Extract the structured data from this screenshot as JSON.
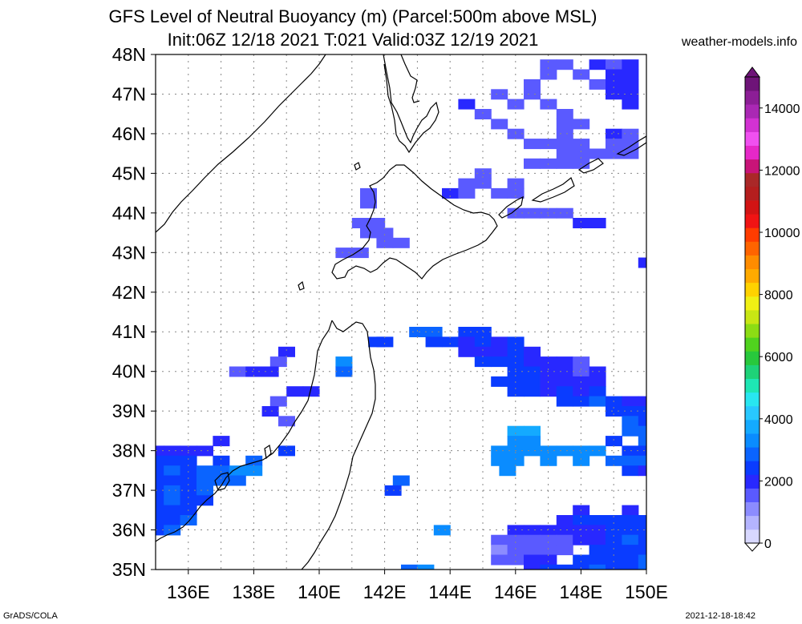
{
  "title_line1": "GFS Level of Neutral Buoyancy (m) (Parcel:500m above MSL)",
  "title_line2": "Init:06Z 12/18 2021 T:021 Valid:03Z 12/19 2021",
  "site": "weather-models.info",
  "footer_left": "GrADS/COLA",
  "footer_right": "2021-12-18-18:42",
  "map": {
    "lat_labels": [
      "48N",
      "47N",
      "46N",
      "45N",
      "44N",
      "43N",
      "42N",
      "41N",
      "40N",
      "39N",
      "38N",
      "37N",
      "36N",
      "35N"
    ],
    "lon_labels": [
      "136E",
      "138E",
      "140E",
      "142E",
      "144E",
      "146E",
      "148E",
      "150E"
    ],
    "lat_range": [
      35,
      48
    ],
    "lon_range": [
      135,
      150
    ],
    "grid": "dotted"
  },
  "colorbar": {
    "labels": [
      "14000",
      "12000",
      "10000",
      "8000",
      "6000",
      "4000",
      "2000",
      "0"
    ],
    "colors": [
      "#d8d8ff",
      "#b4b4ff",
      "#8c8cff",
      "#5a5aff",
      "#2828ff",
      "#0a3cff",
      "#0a64ff",
      "#0a8cff",
      "#14aaff",
      "#28c8ff",
      "#28e6f0",
      "#1ee6b4",
      "#1ed278",
      "#28c83c",
      "#50d21e",
      "#8cdc14",
      "#c8e614",
      "#f0f014",
      "#ffd200",
      "#ffaa00",
      "#ff8c00",
      "#ff6400",
      "#ff3c00",
      "#f01414",
      "#d21414",
      "#b41e1e",
      "#aa2828",
      "#c81478",
      "#e628c8",
      "#f050f0",
      "#d232d2",
      "#aa28b4",
      "#8c1e96",
      "#6e1478"
    ]
  },
  "cells": [
    [
      47.75,
      147.0,
      1500
    ],
    [
      47.75,
      147.5,
      1500
    ],
    [
      47.75,
      148.5,
      1900
    ],
    [
      47.75,
      149.0,
      1500
    ],
    [
      47.75,
      149.5,
      1800
    ],
    [
      47.5,
      147.0,
      1500
    ],
    [
      47.5,
      148.0,
      1700
    ],
    [
      47.5,
      149.0,
      2000
    ],
    [
      47.5,
      149.5,
      2100
    ],
    [
      47.25,
      146.5,
      1700
    ],
    [
      47.25,
      148.5,
      1500
    ],
    [
      47.25,
      149.0,
      2000
    ],
    [
      47.25,
      149.5,
      1900
    ],
    [
      47.0,
      145.5,
      1700
    ],
    [
      47.0,
      146.5,
      1500
    ],
    [
      47.0,
      149.0,
      1800
    ],
    [
      47.0,
      149.5,
      2200
    ],
    [
      46.75,
      144.5,
      1800
    ],
    [
      46.75,
      146.0,
      1500
    ],
    [
      46.75,
      147.0,
      1600
    ],
    [
      46.75,
      149.5,
      1800
    ],
    [
      46.5,
      145.0,
      1700
    ],
    [
      46.5,
      147.5,
      1500
    ],
    [
      46.25,
      145.5,
      1500
    ],
    [
      46.25,
      147.5,
      1600
    ],
    [
      46.25,
      148.0,
      1500
    ],
    [
      46.0,
      146.0,
      1500
    ],
    [
      46.0,
      147.5,
      1700
    ],
    [
      46.0,
      149.0,
      1800
    ],
    [
      46.0,
      149.5,
      1600
    ],
    [
      45.75,
      146.5,
      1500
    ],
    [
      45.75,
      147.0,
      1600
    ],
    [
      45.75,
      147.5,
      1500
    ],
    [
      45.75,
      148.0,
      1500
    ],
    [
      45.75,
      149.0,
      1700
    ],
    [
      45.75,
      149.5,
      1700
    ],
    [
      45.5,
      147.5,
      1600
    ],
    [
      45.5,
      148.0,
      1700
    ],
    [
      45.5,
      148.5,
      1600
    ],
    [
      45.5,
      149.0,
      1500
    ],
    [
      45.5,
      149.5,
      1500
    ],
    [
      45.25,
      146.5,
      1500
    ],
    [
      45.25,
      147.0,
      1500
    ],
    [
      45.25,
      147.5,
      1500
    ],
    [
      45.25,
      148.0,
      1600
    ],
    [
      45.0,
      145.0,
      1600
    ],
    [
      44.75,
      144.5,
      1700
    ],
    [
      44.75,
      145.0,
      1500
    ],
    [
      44.75,
      146.0,
      1500
    ],
    [
      44.5,
      141.5,
      1700
    ],
    [
      44.5,
      144.0,
      1800
    ],
    [
      44.5,
      144.5,
      1600
    ],
    [
      44.5,
      145.5,
      1500
    ],
    [
      44.5,
      146.0,
      1600
    ],
    [
      44.25,
      141.5,
      1700
    ],
    [
      44.0,
      146.0,
      1500
    ],
    [
      44.0,
      146.5,
      1500
    ],
    [
      44.0,
      147.0,
      1500
    ],
    [
      44.0,
      147.5,
      1500
    ],
    [
      43.75,
      141.25,
      1700
    ],
    [
      43.75,
      141.75,
      1600
    ],
    [
      43.75,
      148.0,
      1800
    ],
    [
      43.75,
      148.5,
      1800
    ],
    [
      43.5,
      141.5,
      1700
    ],
    [
      43.5,
      142.0,
      1600
    ],
    [
      43.25,
      142.5,
      1500
    ],
    [
      43.25,
      142.0,
      1600
    ],
    [
      43.0,
      140.75,
      1600
    ],
    [
      43.0,
      141.25,
      1600
    ],
    [
      42.75,
      150.0,
      1800
    ],
    [
      41.0,
      143.0,
      2800
    ],
    [
      41.0,
      143.5,
      3000
    ],
    [
      41.0,
      144.5,
      2400
    ],
    [
      41.0,
      145.0,
      2600
    ],
    [
      40.75,
      141.75,
      2400
    ],
    [
      40.75,
      142.0,
      2300
    ],
    [
      40.75,
      143.5,
      2500
    ],
    [
      40.75,
      144.0,
      2300
    ],
    [
      40.75,
      144.5,
      2200
    ],
    [
      40.75,
      145.0,
      2300
    ],
    [
      40.75,
      145.5,
      2000
    ],
    [
      40.75,
      146.0,
      2400
    ],
    [
      40.5,
      139.0,
      1800
    ],
    [
      40.5,
      144.5,
      2200
    ],
    [
      40.5,
      145.0,
      2000
    ],
    [
      40.5,
      145.5,
      2100
    ],
    [
      40.5,
      146.0,
      2400
    ],
    [
      40.5,
      146.5,
      1900
    ],
    [
      40.25,
      140.75,
      3200
    ],
    [
      40.25,
      138.75,
      1600
    ],
    [
      40.25,
      145.0,
      2300
    ],
    [
      40.25,
      145.5,
      2500
    ],
    [
      40.25,
      146.0,
      2600
    ],
    [
      40.25,
      146.5,
      2200
    ],
    [
      40.25,
      147.0,
      2000
    ],
    [
      40.25,
      147.5,
      2100
    ],
    [
      40.25,
      148.0,
      1500
    ],
    [
      40.0,
      137.5,
      1700
    ],
    [
      40.0,
      138.0,
      1800
    ],
    [
      40.0,
      138.5,
      1900
    ],
    [
      40.0,
      140.75,
      2800
    ],
    [
      40.0,
      146.0,
      2400
    ],
    [
      40.0,
      146.5,
      2300
    ],
    [
      40.0,
      147.0,
      2000
    ],
    [
      40.0,
      147.5,
      1800
    ],
    [
      40.0,
      148.0,
      1700
    ],
    [
      40.0,
      148.5,
      1900
    ],
    [
      39.75,
      145.5,
      2500
    ],
    [
      39.75,
      146.0,
      2600
    ],
    [
      39.75,
      146.5,
      2400
    ],
    [
      39.75,
      147.0,
      2200
    ],
    [
      39.75,
      147.5,
      2000
    ],
    [
      39.75,
      148.0,
      1900
    ],
    [
      39.75,
      148.5,
      2100
    ],
    [
      39.5,
      139.25,
      1900
    ],
    [
      39.5,
      139.75,
      1800
    ],
    [
      39.5,
      146.0,
      2600
    ],
    [
      39.5,
      146.5,
      2400
    ],
    [
      39.5,
      147.0,
      2200
    ],
    [
      39.5,
      147.5,
      2400
    ],
    [
      39.5,
      148.0,
      2200
    ],
    [
      39.5,
      148.5,
      2500
    ],
    [
      39.25,
      138.75,
      1700
    ],
    [
      39.25,
      147.5,
      2300
    ],
    [
      39.25,
      148.0,
      2500
    ],
    [
      39.25,
      148.5,
      2700
    ],
    [
      39.25,
      149.0,
      2300
    ],
    [
      39.25,
      149.5,
      2100
    ],
    [
      39.25,
      150.0,
      2000
    ],
    [
      39.0,
      138.5,
      1800
    ],
    [
      39.0,
      149.0,
      2500
    ],
    [
      39.0,
      149.5,
      2600
    ],
    [
      39.0,
      150.0,
      2500
    ],
    [
      38.75,
      139.0,
      1700
    ],
    [
      38.75,
      149.5,
      2800
    ],
    [
      38.75,
      150.0,
      2600
    ],
    [
      38.5,
      146.0,
      3600
    ],
    [
      38.5,
      146.5,
      3700
    ],
    [
      38.5,
      149.5,
      2900
    ],
    [
      38.5,
      150.0,
      2700
    ],
    [
      38.25,
      137.0,
      1800
    ],
    [
      38.25,
      146.0,
      3500
    ],
    [
      38.25,
      146.5,
      3400
    ],
    [
      38.25,
      149.0,
      2600
    ],
    [
      38.25,
      150.0,
      2800
    ],
    [
      38.0,
      135.0,
      2000
    ],
    [
      38.0,
      135.5,
      2200
    ],
    [
      38.0,
      136.0,
      1800
    ],
    [
      38.0,
      136.5,
      2000
    ],
    [
      38.0,
      139.0,
      2300
    ],
    [
      38.0,
      145.5,
      3500
    ],
    [
      38.0,
      146.0,
      3400
    ],
    [
      38.0,
      146.5,
      3300
    ],
    [
      38.0,
      147.0,
      3400
    ],
    [
      38.0,
      147.5,
      3400
    ],
    [
      38.0,
      148.0,
      3500
    ],
    [
      38.0,
      148.5,
      3200
    ],
    [
      38.0,
      149.5,
      2600
    ],
    [
      38.0,
      150.0,
      2400
    ],
    [
      37.75,
      135.0,
      2400
    ],
    [
      37.75,
      135.5,
      2600
    ],
    [
      37.75,
      136.0,
      2300
    ],
    [
      37.75,
      137.0,
      2300
    ],
    [
      37.75,
      138.0,
      2800
    ],
    [
      37.75,
      145.5,
      3500
    ],
    [
      37.75,
      146.0,
      3300
    ],
    [
      37.75,
      147.0,
      3400
    ],
    [
      37.75,
      148.0,
      3300
    ],
    [
      37.75,
      149.0,
      2800
    ],
    [
      37.75,
      149.5,
      2700
    ],
    [
      37.75,
      150.0,
      2700
    ],
    [
      37.5,
      135.0,
      2600
    ],
    [
      37.5,
      135.5,
      2800
    ],
    [
      37.5,
      136.0,
      2600
    ],
    [
      37.5,
      136.5,
      2700
    ],
    [
      37.5,
      137.0,
      2900
    ],
    [
      37.5,
      137.5,
      3100
    ],
    [
      37.5,
      138.0,
      3300
    ],
    [
      37.5,
      145.75,
      3300
    ],
    [
      37.5,
      149.5,
      2400
    ],
    [
      37.5,
      150.0,
      2200
    ],
    [
      37.25,
      135.0,
      2400
    ],
    [
      37.25,
      135.5,
      2600
    ],
    [
      37.25,
      136.0,
      2500
    ],
    [
      37.25,
      136.5,
      2700
    ],
    [
      37.25,
      137.0,
      3000
    ],
    [
      37.25,
      137.5,
      2900
    ],
    [
      37.25,
      142.5,
      2800
    ],
    [
      37.0,
      135.0,
      2600
    ],
    [
      37.0,
      135.5,
      2800
    ],
    [
      37.0,
      136.0,
      2600
    ],
    [
      37.0,
      136.5,
      2900
    ],
    [
      37.0,
      142.25,
      2600
    ],
    [
      36.75,
      135.0,
      2500
    ],
    [
      36.75,
      135.5,
      2700
    ],
    [
      36.75,
      136.0,
      2400
    ],
    [
      36.75,
      136.5,
      2600
    ],
    [
      36.5,
      135.0,
      2600
    ],
    [
      36.5,
      135.5,
      2500
    ],
    [
      36.5,
      136.0,
      2400
    ],
    [
      36.5,
      148.0,
      2200
    ],
    [
      36.5,
      149.5,
      2100
    ],
    [
      36.25,
      135.0,
      2400
    ],
    [
      36.25,
      135.5,
      2500
    ],
    [
      36.25,
      136.0,
      2700
    ],
    [
      36.25,
      147.5,
      2100
    ],
    [
      36.25,
      148.0,
      2300
    ],
    [
      36.25,
      148.5,
      2400
    ],
    [
      36.25,
      149.0,
      2300
    ],
    [
      36.25,
      149.5,
      2500
    ],
    [
      36.25,
      150.0,
      2300
    ],
    [
      36.0,
      135.0,
      2500
    ],
    [
      36.0,
      135.5,
      2800
    ],
    [
      36.0,
      143.75,
      3200
    ],
    [
      36.0,
      146.0,
      1900
    ],
    [
      36.0,
      146.5,
      1800
    ],
    [
      36.0,
      147.0,
      1800
    ],
    [
      36.0,
      147.5,
      1900
    ],
    [
      36.0,
      148.0,
      2100
    ],
    [
      36.0,
      148.5,
      2200
    ],
    [
      36.0,
      149.0,
      2400
    ],
    [
      36.0,
      149.5,
      2600
    ],
    [
      36.0,
      150.0,
      2400
    ],
    [
      35.75,
      145.5,
      1400
    ],
    [
      35.75,
      146.0,
      1400
    ],
    [
      35.75,
      146.5,
      1600
    ],
    [
      35.75,
      147.0,
      1700
    ],
    [
      35.75,
      147.5,
      1500
    ],
    [
      35.75,
      148.0,
      1800
    ],
    [
      35.75,
      148.5,
      2200
    ],
    [
      35.75,
      149.0,
      2500
    ],
    [
      35.75,
      149.5,
      2700
    ],
    [
      35.75,
      150.0,
      2500
    ],
    [
      35.5,
      145.5,
      1300
    ],
    [
      35.5,
      146.0,
      1500
    ],
    [
      35.5,
      146.5,
      1700
    ],
    [
      35.5,
      147.0,
      1400
    ],
    [
      35.5,
      147.5,
      1700
    ],
    [
      35.5,
      148.5,
      2300
    ],
    [
      35.5,
      149.0,
      2600
    ],
    [
      35.5,
      149.5,
      2400
    ],
    [
      35.5,
      150.0,
      2600
    ],
    [
      35.25,
      145.5,
      1500
    ],
    [
      35.25,
      146.0,
      1600
    ],
    [
      35.25,
      146.5,
      1800
    ],
    [
      35.25,
      147.0,
      2000
    ],
    [
      35.25,
      148.0,
      2300
    ],
    [
      35.25,
      148.5,
      2500
    ],
    [
      35.25,
      149.0,
      2300
    ],
    [
      35.25,
      149.5,
      2500
    ],
    [
      35.25,
      150.0,
      2700
    ],
    [
      35.0,
      142.75,
      2900
    ],
    [
      35.0,
      143.25,
      3100
    ],
    [
      35.0,
      146.5,
      2200
    ],
    [
      35.0,
      147.0,
      2400
    ],
    [
      35.0,
      147.5,
      2300
    ],
    [
      35.0,
      148.0,
      2500
    ],
    [
      35.0,
      148.5,
      2700
    ],
    [
      35.0,
      149.0,
      2600
    ],
    [
      35.0,
      149.5,
      2500
    ],
    [
      35.0,
      150.0,
      2800
    ]
  ]
}
